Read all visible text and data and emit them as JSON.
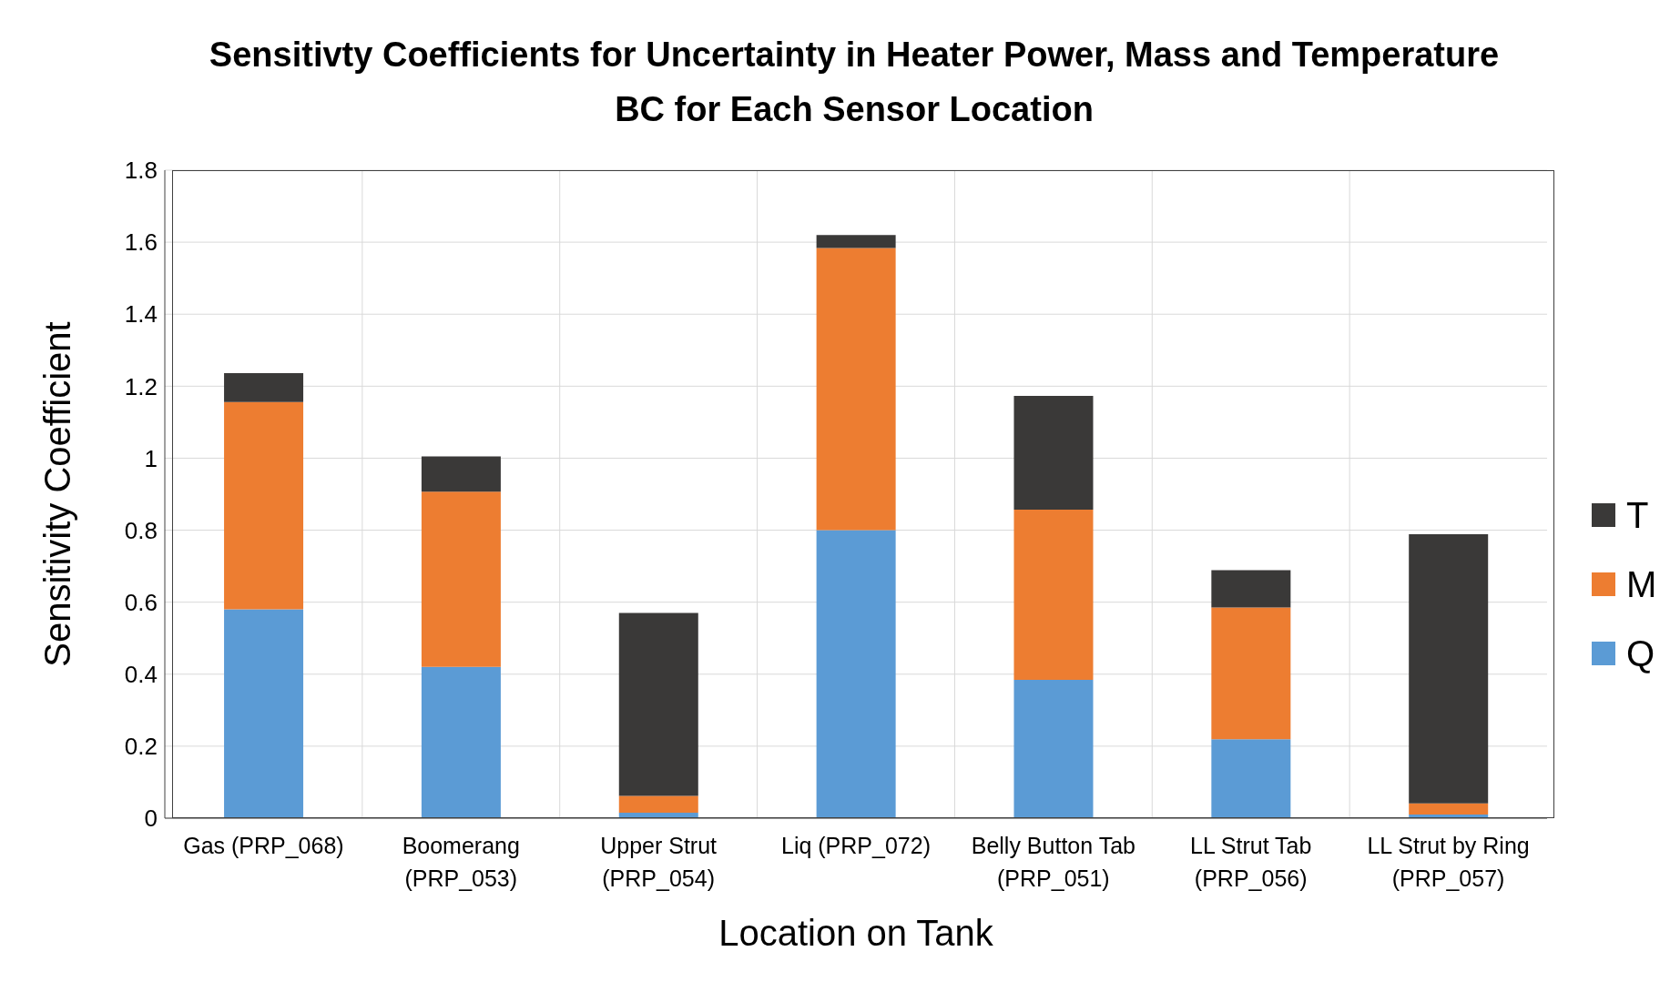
{
  "chart_data": {
    "type": "bar",
    "title": "Sensitivty Coefficients for Uncertainty in Heater Power, Mass and Temperature BC for Each Sensor Location",
    "xlabel": "Location on Tank",
    "ylabel": "Sensitivity Coefficient",
    "categories": [
      "Gas (PRP_068)",
      "Boomerang (PRP_053)",
      "Upper Strut (PRP_054)",
      "Liq (PRP_072)",
      "Belly Button Tab (PRP_051)",
      "LL Strut Tab (PRP_056)",
      "LL Strut by Ring (PRP_057)"
    ],
    "series": [
      {
        "name": "Q",
        "color": "#5b9bd5",
        "values": [
          0.58,
          0.42,
          0.015,
          0.8,
          0.384,
          0.219,
          0.01
        ]
      },
      {
        "name": "M",
        "color": "#ed7d31",
        "values": [
          0.576,
          0.487,
          0.047,
          0.784,
          0.473,
          0.366,
          0.031
        ]
      },
      {
        "name": "T",
        "color": "#3a3938",
        "values": [
          0.08,
          0.098,
          0.508,
          0.036,
          0.316,
          0.104,
          0.748
        ]
      }
    ],
    "stacked": true,
    "ylim": [
      0,
      1.8
    ],
    "yticks": [
      0,
      0.2,
      0.4,
      0.6,
      0.8,
      1,
      1.2,
      1.4,
      1.6,
      1.8
    ],
    "grid": true,
    "legend": "right"
  }
}
